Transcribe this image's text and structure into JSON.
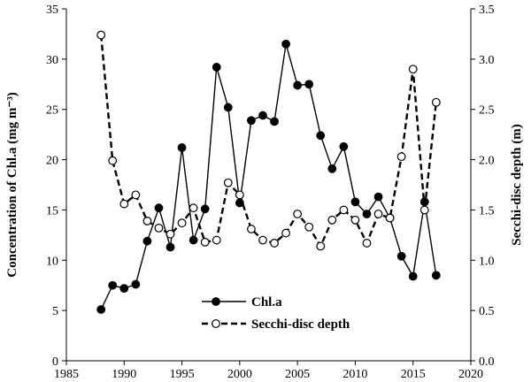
{
  "chart_data": {
    "type": "line",
    "xlabel": "",
    "ylabel": "Concentration of Chl.a (mg m⁻³)",
    "ylabel_right": "Secchi-disc depth (m)",
    "xlim": [
      1985,
      2020
    ],
    "ylim": [
      0,
      35
    ],
    "ylim_right": [
      0,
      3.5
    ],
    "x_ticks": [
      "1985",
      "1990",
      "1995",
      "2000",
      "2005",
      "2010",
      "2015",
      "2020"
    ],
    "y_ticks": [
      "0",
      "5",
      "10",
      "15",
      "20",
      "25",
      "30",
      "35"
    ],
    "y_ticks_right": [
      "0.0",
      "0.5",
      "1.0",
      "1.5",
      "2.0",
      "2.5",
      "3.0",
      "3.5"
    ],
    "grid": false,
    "legend_position": "bottom-center",
    "series": [
      {
        "name": "Chl.a",
        "axis": "left",
        "line_style": "solid",
        "marker": "filled-circle",
        "color": "#000000",
        "x": [
          1988,
          1989,
          1990,
          1991,
          1992,
          1993,
          1994,
          1995,
          1996,
          1997,
          1998,
          1999,
          2000,
          2001,
          2002,
          2003,
          2004,
          2005,
          2006,
          2007,
          2008,
          2009,
          2010,
          2011,
          2012,
          2013,
          2014,
          2015,
          2016,
          2017
        ],
        "y": [
          5.1,
          7.5,
          7.2,
          7.6,
          11.9,
          15.2,
          11.3,
          21.2,
          12.0,
          15.1,
          29.2,
          25.2,
          15.7,
          23.9,
          24.4,
          23.8,
          31.5,
          27.4,
          27.5,
          22.4,
          19.1,
          21.3,
          15.8,
          14.6,
          16.3,
          14.2,
          10.4,
          8.4,
          15.8,
          8.5
        ]
      },
      {
        "name": "Secchi-disc depth",
        "axis": "right",
        "line_style": "dashed",
        "marker": "open-circle",
        "color": "#000000",
        "x": [
          1988,
          1989,
          1990,
          1991,
          1992,
          1993,
          1994,
          1995,
          1996,
          1997,
          1998,
          1999,
          2000,
          2001,
          2002,
          2003,
          2004,
          2005,
          2006,
          2007,
          2008,
          2009,
          2010,
          2011,
          2012,
          2013,
          2014,
          2015,
          2016,
          2017
        ],
        "y": [
          3.24,
          1.99,
          1.56,
          1.65,
          1.39,
          1.32,
          1.26,
          1.37,
          1.52,
          1.18,
          1.2,
          1.77,
          1.65,
          1.31,
          1.2,
          1.17,
          1.27,
          1.46,
          1.33,
          1.14,
          1.4,
          1.5,
          1.4,
          1.17,
          1.46,
          1.42,
          2.03,
          2.9,
          1.5,
          2.57
        ]
      }
    ]
  }
}
